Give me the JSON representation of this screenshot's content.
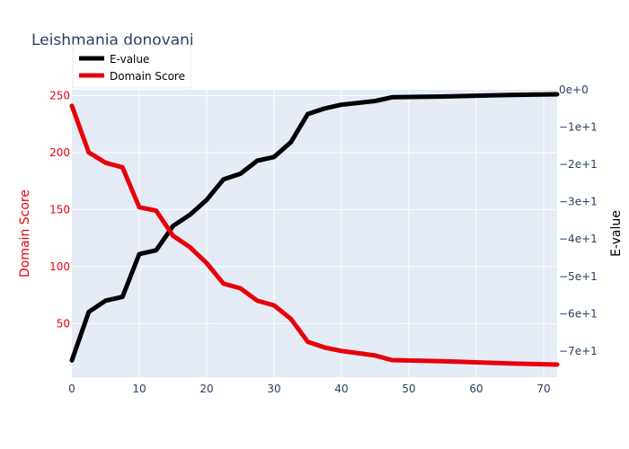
{
  "chart_data": {
    "type": "line",
    "title": "Leishmania donovani",
    "xlabel": "",
    "xlim": [
      0,
      72
    ],
    "x_ticks": [
      0,
      10,
      20,
      30,
      40,
      50,
      60,
      70
    ],
    "y_left": {
      "label": "Domain Score",
      "lim": [
        3,
        255
      ],
      "ticks": [
        50,
        100,
        150,
        200,
        250
      ],
      "tick_labels": [
        "50",
        "100",
        "150",
        "200",
        "250"
      ],
      "color": "#e8000b"
    },
    "y_right": {
      "label": "E-value",
      "lim": [
        -77,
        0
      ],
      "ticks": [
        0,
        -10,
        -20,
        -30,
        -40,
        -50,
        -60,
        -70
      ],
      "tick_labels": [
        "0e+0",
        "−1e+1",
        "−2e+1",
        "−3e+1",
        "−4e+1",
        "−5e+1",
        "−6e+1",
        "−7e+1"
      ],
      "color": "#000000"
    },
    "x": [
      0,
      2.5,
      5,
      7.5,
      10,
      12.5,
      15,
      17.5,
      20,
      22.5,
      25,
      27.5,
      30,
      32.5,
      35,
      37.5,
      40,
      45,
      47.5,
      55,
      65,
      72
    ],
    "series": [
      {
        "name": "E-value",
        "axis": "right",
        "color": "#000000",
        "values": [
          -72.5,
          -59.5,
          -56.5,
          -55.5,
          -44.0,
          -43.0,
          -36.5,
          -33.5,
          -29.5,
          -24.0,
          -22.5,
          -19.0,
          -18.0,
          -14.0,
          -6.5,
          -5.0,
          -4.0,
          -3.0,
          -2.0,
          -1.8,
          -1.4,
          -1.2
        ]
      },
      {
        "name": "Domain Score",
        "axis": "left",
        "color": "#e8000b",
        "values": [
          241,
          200,
          191,
          187,
          152,
          149,
          127,
          117,
          103,
          85,
          81,
          70,
          66,
          54,
          34,
          29,
          26,
          22,
          18,
          17,
          15,
          14
        ]
      }
    ],
    "legend": {
      "placement": "top-left",
      "entries": [
        "E-value",
        "Domain Score"
      ]
    },
    "grid": true,
    "plot_background": "#e5ecf6"
  }
}
